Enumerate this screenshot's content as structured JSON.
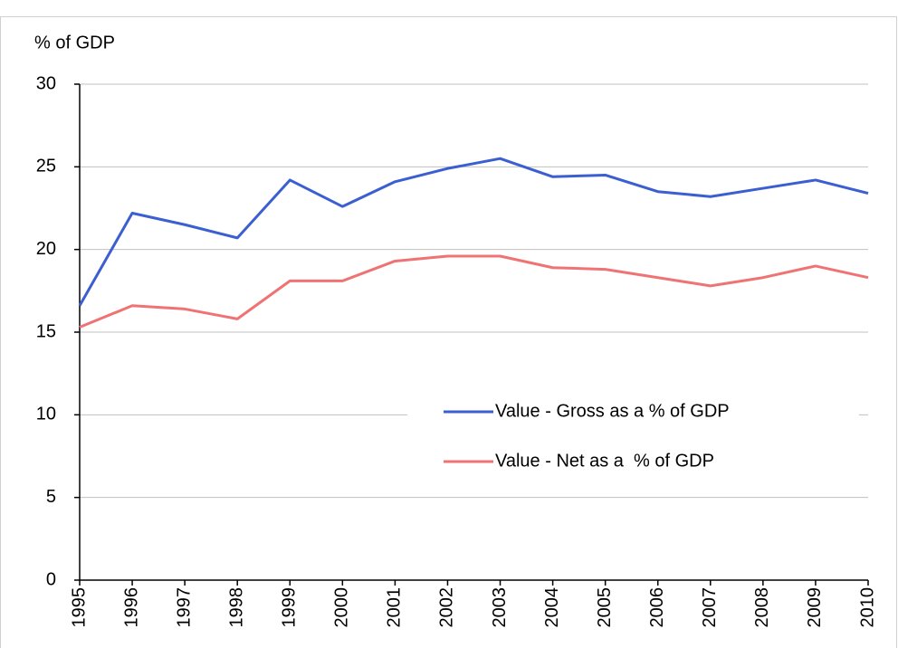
{
  "chart_data": {
    "type": "line",
    "y_label": "% of GDP",
    "categories": [
      "1995",
      "1996",
      "1997",
      "1998",
      "1999",
      "2000",
      "2001",
      "2002",
      "2003",
      "2004",
      "2005",
      "2006",
      "2007",
      "2008",
      "2009",
      "2010"
    ],
    "series": [
      {
        "name": "Value - Gross as a % of GDP",
        "color": "#3b5fd0",
        "values": [
          16.6,
          22.2,
          21.5,
          20.7,
          24.2,
          22.6,
          24.1,
          24.9,
          25.5,
          24.4,
          24.5,
          23.5,
          23.2,
          23.7,
          24.2,
          23.4
        ]
      },
      {
        "name": "Value - Net as a  % of GDP",
        "color": "#f07373",
        "values": [
          15.3,
          16.6,
          16.4,
          15.8,
          18.1,
          18.1,
          19.3,
          19.6,
          19.6,
          18.9,
          18.8,
          18.3,
          17.8,
          18.3,
          19.0,
          18.3
        ]
      }
    ],
    "ylim": [
      0,
      30
    ],
    "yticks": [
      0,
      5,
      10,
      15,
      20,
      25,
      30
    ],
    "grid": true,
    "legend": "center-right"
  }
}
